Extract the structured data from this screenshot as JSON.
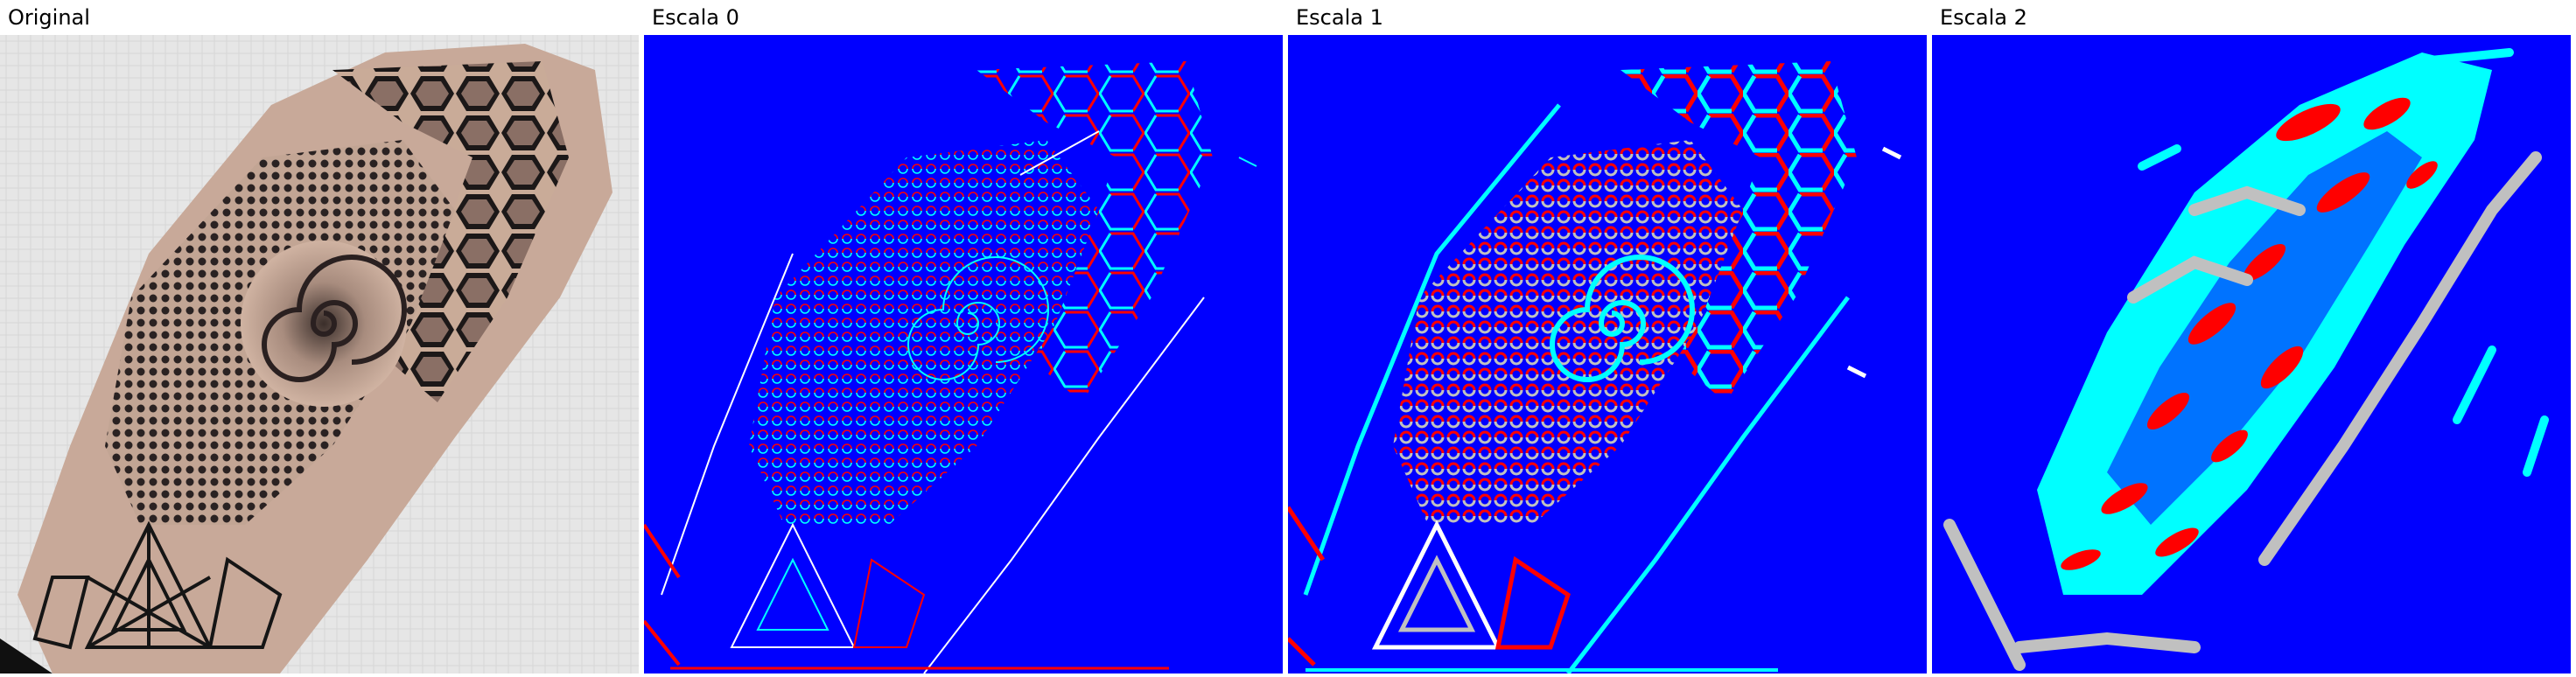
{
  "panels": [
    {
      "id": "original",
      "label": "Original"
    },
    {
      "id": "scale-0",
      "label": "Escala 0"
    },
    {
      "id": "scale-1",
      "label": "Escala 1"
    },
    {
      "id": "scale-2",
      "label": "Escala 2"
    }
  ],
  "colors": {
    "background": "#ffffff",
    "edge_background": "#0000ff",
    "edge_positive": "#ff0000",
    "edge_negative": "#00ffff",
    "edge_neutral": "#c0c0c0",
    "skin": "#b89a86",
    "ink": "#1a1a1a",
    "sheet": "#e8e8e8"
  }
}
